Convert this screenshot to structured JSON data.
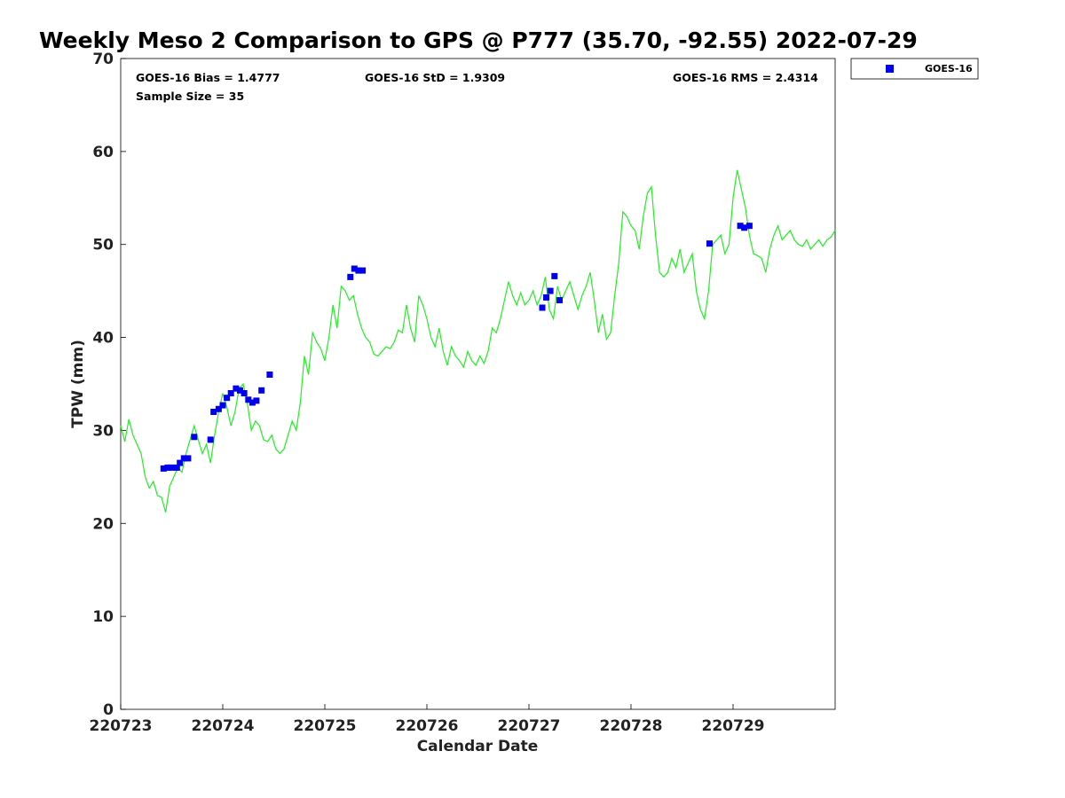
{
  "chart_data": {
    "type": "line",
    "title": "Weekly Meso 2 Comparison to GPS @ P777 (35.70, -92.55) 2022-07-29",
    "xlabel": "Calendar Date",
    "ylabel": "TPW (mm)",
    "xlim": [
      0,
      7
    ],
    "ylim": [
      0,
      70
    ],
    "x_ticks": [
      {
        "value": 0,
        "label": "220723"
      },
      {
        "value": 1,
        "label": "220724"
      },
      {
        "value": 2,
        "label": "220725"
      },
      {
        "value": 3,
        "label": "220726"
      },
      {
        "value": 4,
        "label": "220727"
      },
      {
        "value": 5,
        "label": "220728"
      },
      {
        "value": 6,
        "label": "220729"
      }
    ],
    "y_ticks": [
      0,
      10,
      20,
      30,
      40,
      50,
      60,
      70
    ],
    "grid": false,
    "legend": {
      "position": "top-right-outside",
      "entries": [
        "GOES-16"
      ]
    },
    "stats": {
      "bias": "GOES-16 Bias = 1.4777",
      "std": "GOES-16 StD = 1.9309",
      "rms": "GOES-16 RMS = 2.4314",
      "sample": "Sample Size = 35"
    },
    "series": [
      {
        "kind": "line",
        "color": "#22ee22",
        "points": [
          [
            0.0,
            30.5
          ],
          [
            0.04,
            28.8
          ],
          [
            0.08,
            31.2
          ],
          [
            0.12,
            29.5
          ],
          [
            0.16,
            28.5
          ],
          [
            0.2,
            27.5
          ],
          [
            0.24,
            25.0
          ],
          [
            0.28,
            23.8
          ],
          [
            0.32,
            24.5
          ],
          [
            0.36,
            23.0
          ],
          [
            0.4,
            22.8
          ],
          [
            0.44,
            21.2
          ],
          [
            0.48,
            24.0
          ],
          [
            0.52,
            25.0
          ],
          [
            0.56,
            26.0
          ],
          [
            0.6,
            25.5
          ],
          [
            0.64,
            27.5
          ],
          [
            0.68,
            29.0
          ],
          [
            0.72,
            30.5
          ],
          [
            0.76,
            29.0
          ],
          [
            0.8,
            27.5
          ],
          [
            0.84,
            28.5
          ],
          [
            0.88,
            26.5
          ],
          [
            0.92,
            29.5
          ],
          [
            0.96,
            32.0
          ],
          [
            1.0,
            34.0
          ],
          [
            1.04,
            32.5
          ],
          [
            1.08,
            30.5
          ],
          [
            1.12,
            32.0
          ],
          [
            1.16,
            34.5
          ],
          [
            1.2,
            35.0
          ],
          [
            1.24,
            33.0
          ],
          [
            1.28,
            30.0
          ],
          [
            1.32,
            31.0
          ],
          [
            1.36,
            30.5
          ],
          [
            1.4,
            29.0
          ],
          [
            1.44,
            28.8
          ],
          [
            1.48,
            29.5
          ],
          [
            1.52,
            28.0
          ],
          [
            1.56,
            27.5
          ],
          [
            1.6,
            28.0
          ],
          [
            1.64,
            29.5
          ],
          [
            1.68,
            31.0
          ],
          [
            1.72,
            30.0
          ],
          [
            1.76,
            33.0
          ],
          [
            1.8,
            38.0
          ],
          [
            1.84,
            36.0
          ],
          [
            1.88,
            40.5
          ],
          [
            1.92,
            39.5
          ],
          [
            1.96,
            38.8
          ],
          [
            2.0,
            37.5
          ],
          [
            2.04,
            40.0
          ],
          [
            2.08,
            43.5
          ],
          [
            2.12,
            41.0
          ],
          [
            2.16,
            45.5
          ],
          [
            2.2,
            45.0
          ],
          [
            2.24,
            44.0
          ],
          [
            2.28,
            44.5
          ],
          [
            2.32,
            42.5
          ],
          [
            2.36,
            41.0
          ],
          [
            2.4,
            40.0
          ],
          [
            2.44,
            39.5
          ],
          [
            2.48,
            38.2
          ],
          [
            2.52,
            38.0
          ],
          [
            2.56,
            38.5
          ],
          [
            2.6,
            39.0
          ],
          [
            2.64,
            38.8
          ],
          [
            2.68,
            39.5
          ],
          [
            2.72,
            40.8
          ],
          [
            2.76,
            40.5
          ],
          [
            2.8,
            43.5
          ],
          [
            2.84,
            41.0
          ],
          [
            2.88,
            39.5
          ],
          [
            2.92,
            44.5
          ],
          [
            2.96,
            43.5
          ],
          [
            3.0,
            42.0
          ],
          [
            3.04,
            40.0
          ],
          [
            3.08,
            39.0
          ],
          [
            3.12,
            41.0
          ],
          [
            3.16,
            38.5
          ],
          [
            3.2,
            37.0
          ],
          [
            3.24,
            39.0
          ],
          [
            3.28,
            38.0
          ],
          [
            3.32,
            37.5
          ],
          [
            3.36,
            36.8
          ],
          [
            3.4,
            38.5
          ],
          [
            3.44,
            37.5
          ],
          [
            3.48,
            37.0
          ],
          [
            3.52,
            38.0
          ],
          [
            3.56,
            37.2
          ],
          [
            3.6,
            38.5
          ],
          [
            3.64,
            41.0
          ],
          [
            3.68,
            40.5
          ],
          [
            3.72,
            42.0
          ],
          [
            3.76,
            44.0
          ],
          [
            3.8,
            46.0
          ],
          [
            3.84,
            44.5
          ],
          [
            3.88,
            43.5
          ],
          [
            3.92,
            44.8
          ],
          [
            3.96,
            43.5
          ],
          [
            4.0,
            44.0
          ],
          [
            4.04,
            45.0
          ],
          [
            4.08,
            43.5
          ],
          [
            4.12,
            44.5
          ],
          [
            4.16,
            46.5
          ],
          [
            4.2,
            43.0
          ],
          [
            4.24,
            42.0
          ],
          [
            4.28,
            45.5
          ],
          [
            4.32,
            44.0
          ],
          [
            4.36,
            45.0
          ],
          [
            4.4,
            46.0
          ],
          [
            4.44,
            44.5
          ],
          [
            4.48,
            43.0
          ],
          [
            4.52,
            44.5
          ],
          [
            4.56,
            45.5
          ],
          [
            4.6,
            47.0
          ],
          [
            4.64,
            44.0
          ],
          [
            4.68,
            40.5
          ],
          [
            4.72,
            42.5
          ],
          [
            4.76,
            39.8
          ],
          [
            4.8,
            40.5
          ],
          [
            4.84,
            44.5
          ],
          [
            4.88,
            48.0
          ],
          [
            4.92,
            53.5
          ],
          [
            4.96,
            53.0
          ],
          [
            5.0,
            52.0
          ],
          [
            5.04,
            51.5
          ],
          [
            5.08,
            49.5
          ],
          [
            5.12,
            53.0
          ],
          [
            5.16,
            55.5
          ],
          [
            5.2,
            56.2
          ],
          [
            5.24,
            51.0
          ],
          [
            5.28,
            47.0
          ],
          [
            5.32,
            46.5
          ],
          [
            5.36,
            47.0
          ],
          [
            5.4,
            48.5
          ],
          [
            5.44,
            47.5
          ],
          [
            5.48,
            49.5
          ],
          [
            5.52,
            47.0
          ],
          [
            5.56,
            48.0
          ],
          [
            5.6,
            49.0
          ],
          [
            5.64,
            45.0
          ],
          [
            5.68,
            43.0
          ],
          [
            5.72,
            42.0
          ],
          [
            5.76,
            45.0
          ],
          [
            5.8,
            50.0
          ],
          [
            5.84,
            50.5
          ],
          [
            5.88,
            51.0
          ],
          [
            5.92,
            49.0
          ],
          [
            5.96,
            50.0
          ],
          [
            6.0,
            55.0
          ],
          [
            6.04,
            58.0
          ],
          [
            6.08,
            56.0
          ],
          [
            6.12,
            54.0
          ],
          [
            6.16,
            51.0
          ],
          [
            6.2,
            49.0
          ],
          [
            6.24,
            48.8
          ],
          [
            6.28,
            48.5
          ],
          [
            6.32,
            47.0
          ],
          [
            6.36,
            49.5
          ],
          [
            6.4,
            51.0
          ],
          [
            6.44,
            52.0
          ],
          [
            6.48,
            50.5
          ],
          [
            6.52,
            51.0
          ],
          [
            6.56,
            51.5
          ],
          [
            6.6,
            50.5
          ],
          [
            6.64,
            50.0
          ],
          [
            6.68,
            49.8
          ],
          [
            6.72,
            50.5
          ],
          [
            6.76,
            49.5
          ],
          [
            6.8,
            50.0
          ],
          [
            6.84,
            50.5
          ],
          [
            6.88,
            49.8
          ],
          [
            6.92,
            50.5
          ],
          [
            6.96,
            50.8
          ],
          [
            7.0,
            51.5
          ]
        ]
      },
      {
        "kind": "scatter",
        "name": "GOES-16",
        "color": "#0000ee",
        "points": [
          [
            0.42,
            25.9
          ],
          [
            0.46,
            26.0
          ],
          [
            0.5,
            26.0
          ],
          [
            0.55,
            26.0
          ],
          [
            0.58,
            26.5
          ],
          [
            0.62,
            27.0
          ],
          [
            0.66,
            27.0
          ],
          [
            0.72,
            29.3
          ],
          [
            0.88,
            29.0
          ],
          [
            0.91,
            32.0
          ],
          [
            0.96,
            32.3
          ],
          [
            1.0,
            32.7
          ],
          [
            1.04,
            33.5
          ],
          [
            1.08,
            34.0
          ],
          [
            1.13,
            34.5
          ],
          [
            1.17,
            34.3
          ],
          [
            1.21,
            34.0
          ],
          [
            1.25,
            33.3
          ],
          [
            1.29,
            33.0
          ],
          [
            1.33,
            33.2
          ],
          [
            1.38,
            34.3
          ],
          [
            1.46,
            36.0
          ],
          [
            2.25,
            46.5
          ],
          [
            2.29,
            47.4
          ],
          [
            2.33,
            47.2
          ],
          [
            2.37,
            47.2
          ],
          [
            4.13,
            43.2
          ],
          [
            4.17,
            44.3
          ],
          [
            4.21,
            45.0
          ],
          [
            4.25,
            46.6
          ],
          [
            4.3,
            44.0
          ],
          [
            5.77,
            50.1
          ],
          [
            6.07,
            52.0
          ],
          [
            6.11,
            51.8
          ],
          [
            6.16,
            52.0
          ]
        ]
      }
    ]
  }
}
